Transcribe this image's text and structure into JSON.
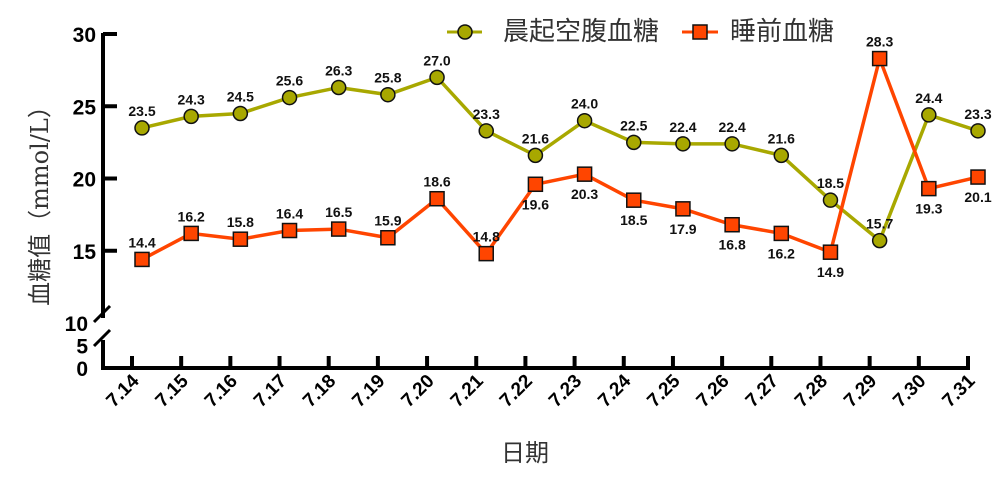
{
  "chart_data": {
    "type": "line",
    "title": "",
    "xlabel": "日期",
    "ylabel": "血糖值（mmol/L）",
    "categories": [
      "7.14",
      "7.15",
      "7.16",
      "7.17",
      "7.18",
      "7.19",
      "7.20",
      "7.21",
      "7.22",
      "7.23",
      "7.24",
      "7.25",
      "7.26",
      "7.27",
      "7.28",
      "7.29",
      "7.30",
      "7.31"
    ],
    "series": [
      {
        "name": "晨起空腹血糖",
        "color": "#a8a800",
        "marker": "circle",
        "values": [
          23.5,
          24.3,
          24.5,
          25.6,
          26.3,
          25.8,
          27.0,
          23.3,
          21.6,
          24.0,
          22.5,
          22.4,
          22.4,
          21.6,
          18.5,
          15.7,
          24.4,
          23.3
        ],
        "labels": [
          "23.5",
          "24.3",
          "24.5",
          "25.6",
          "26.3",
          "25.8",
          "27.0",
          "23.3",
          "21.6",
          "24.0",
          "22.5",
          "22.4",
          "22.4",
          "21.6",
          "18.5",
          "15.7",
          "24.4",
          "23.3"
        ]
      },
      {
        "name": "睡前血糖",
        "color": "#ff4500",
        "marker": "square",
        "values": [
          14.4,
          16.2,
          15.8,
          16.4,
          16.5,
          15.9,
          18.6,
          14.8,
          19.6,
          20.3,
          18.5,
          17.9,
          16.8,
          16.2,
          14.9,
          28.3,
          19.3,
          20.1
        ],
        "labels": [
          "14.4",
          "16.2",
          "15.8",
          "16.4",
          "16.5",
          "15.9",
          "18.6",
          "14.8",
          "19.6",
          "20.3",
          "18.5",
          "17.9",
          "16.8",
          "16.2",
          "14.9",
          "28.3",
          "19.3",
          "20.1"
        ]
      }
    ],
    "yticks": [
      "0",
      "5",
      "10",
      "15",
      "20",
      "25",
      "30"
    ],
    "ytick_values": [
      0,
      5,
      10,
      15,
      20,
      25,
      30
    ],
    "ylim": [
      0,
      30
    ],
    "y_axis_break": [
      5,
      10
    ],
    "grid": false,
    "legend": "top-right"
  }
}
